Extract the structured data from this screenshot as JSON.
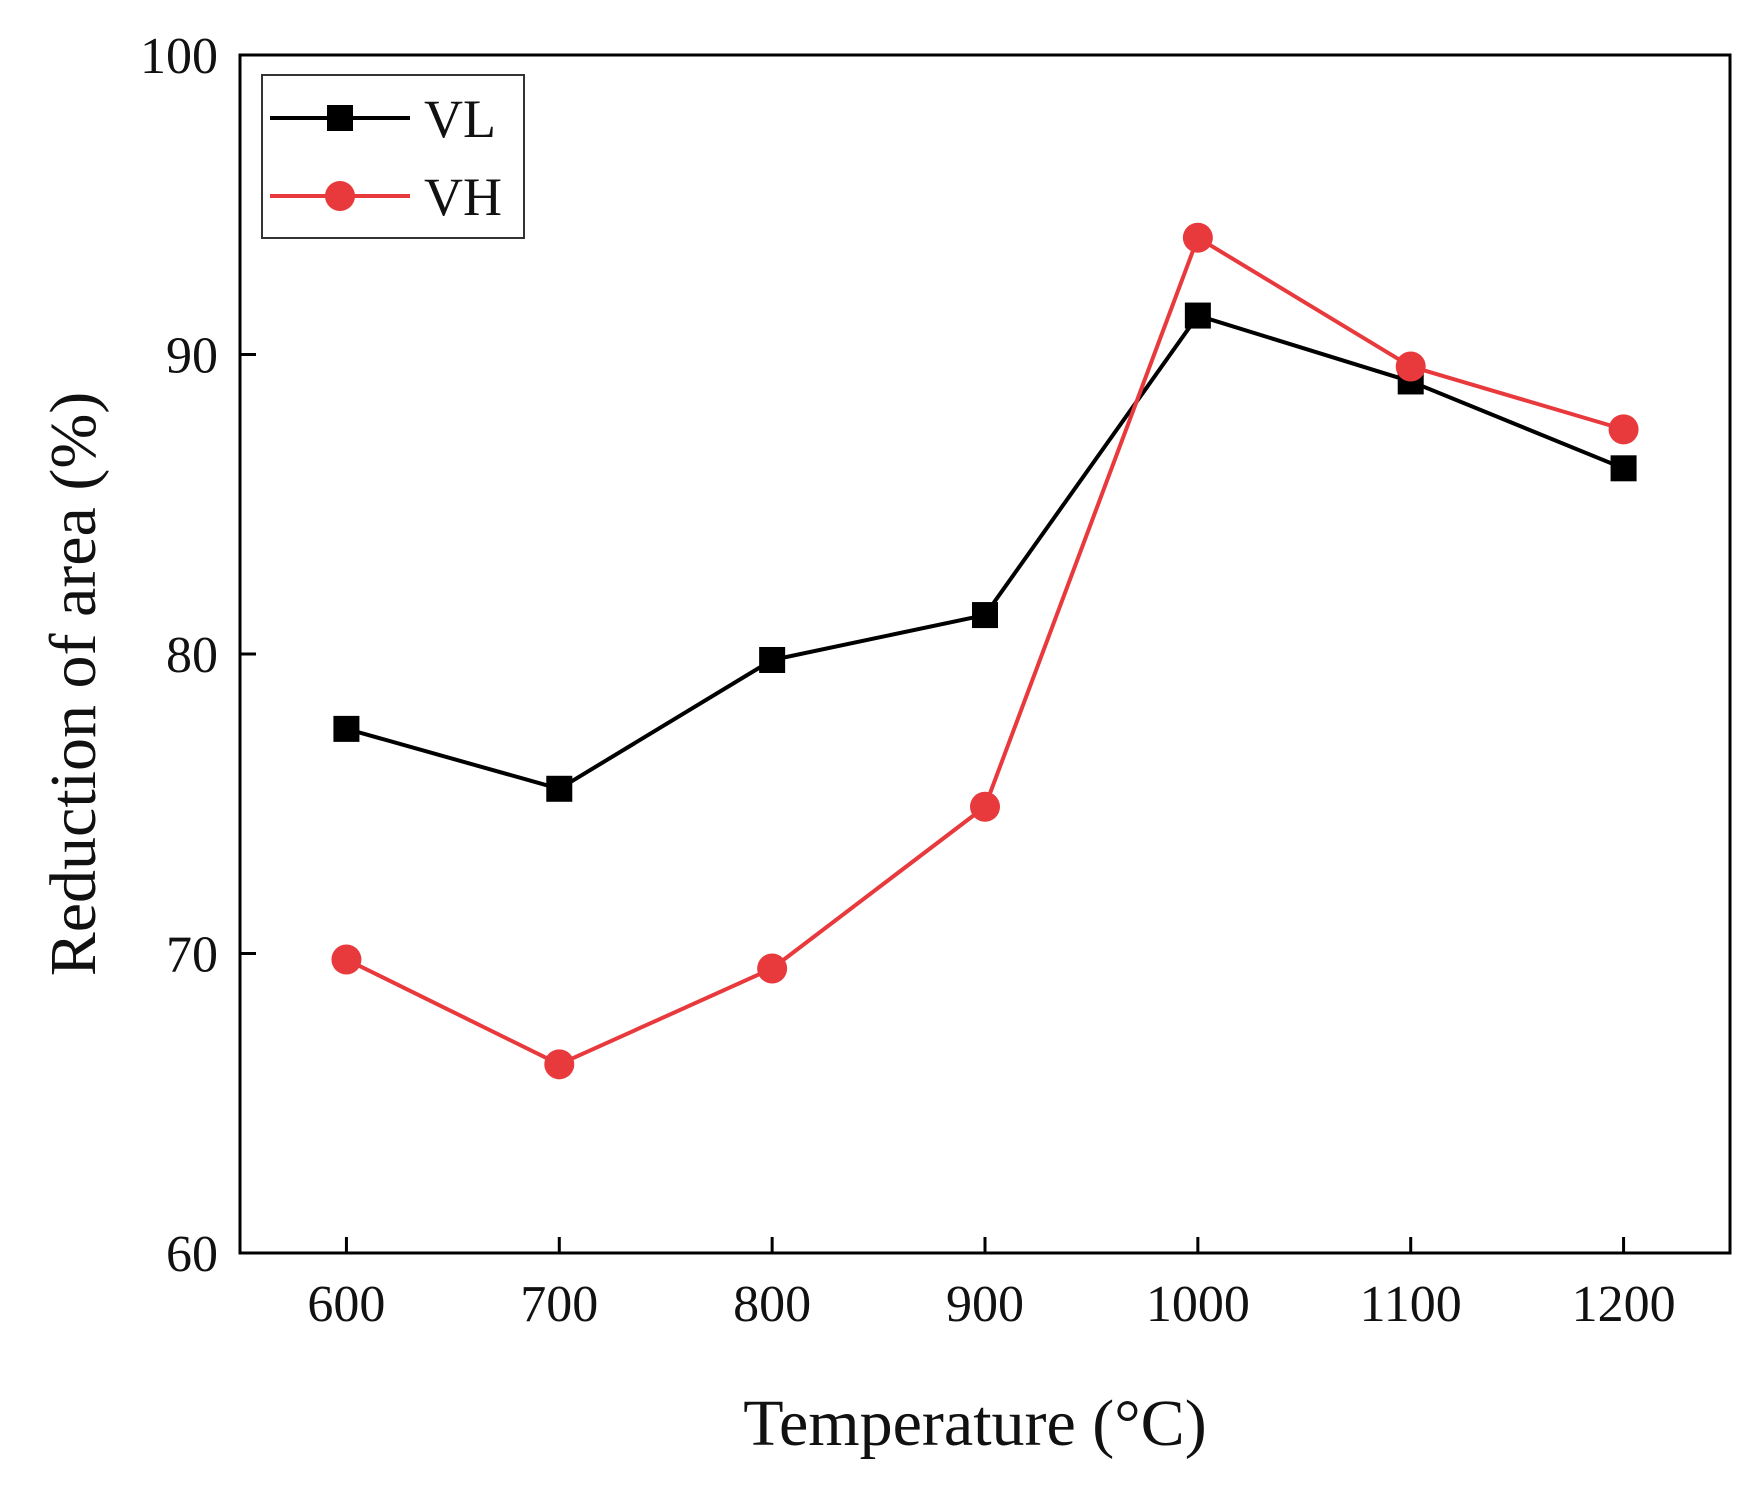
{
  "chart_data": {
    "type": "line",
    "xlabel": "Temperature (°C)",
    "ylabel": "Reduction of area (%)",
    "x": [
      600,
      700,
      800,
      900,
      1000,
      1100,
      1200
    ],
    "xlim": [
      550,
      1250
    ],
    "ylim": [
      60,
      100
    ],
    "x_ticks": [
      "600",
      "700",
      "800",
      "900",
      "1000",
      "1100",
      "1200"
    ],
    "y_ticks": [
      "60",
      "70",
      "80",
      "90",
      "100"
    ],
    "grid": false,
    "legend_position": "top-left",
    "series": [
      {
        "name": "VL",
        "color": "#000000",
        "marker": "square",
        "values": [
          77.5,
          75.5,
          79.8,
          81.3,
          91.3,
          89.1,
          86.2
        ]
      },
      {
        "name": "VH",
        "color": "#e8393d",
        "marker": "circle",
        "values": [
          69.8,
          66.3,
          69.5,
          74.9,
          93.9,
          89.6,
          87.5
        ]
      }
    ]
  }
}
